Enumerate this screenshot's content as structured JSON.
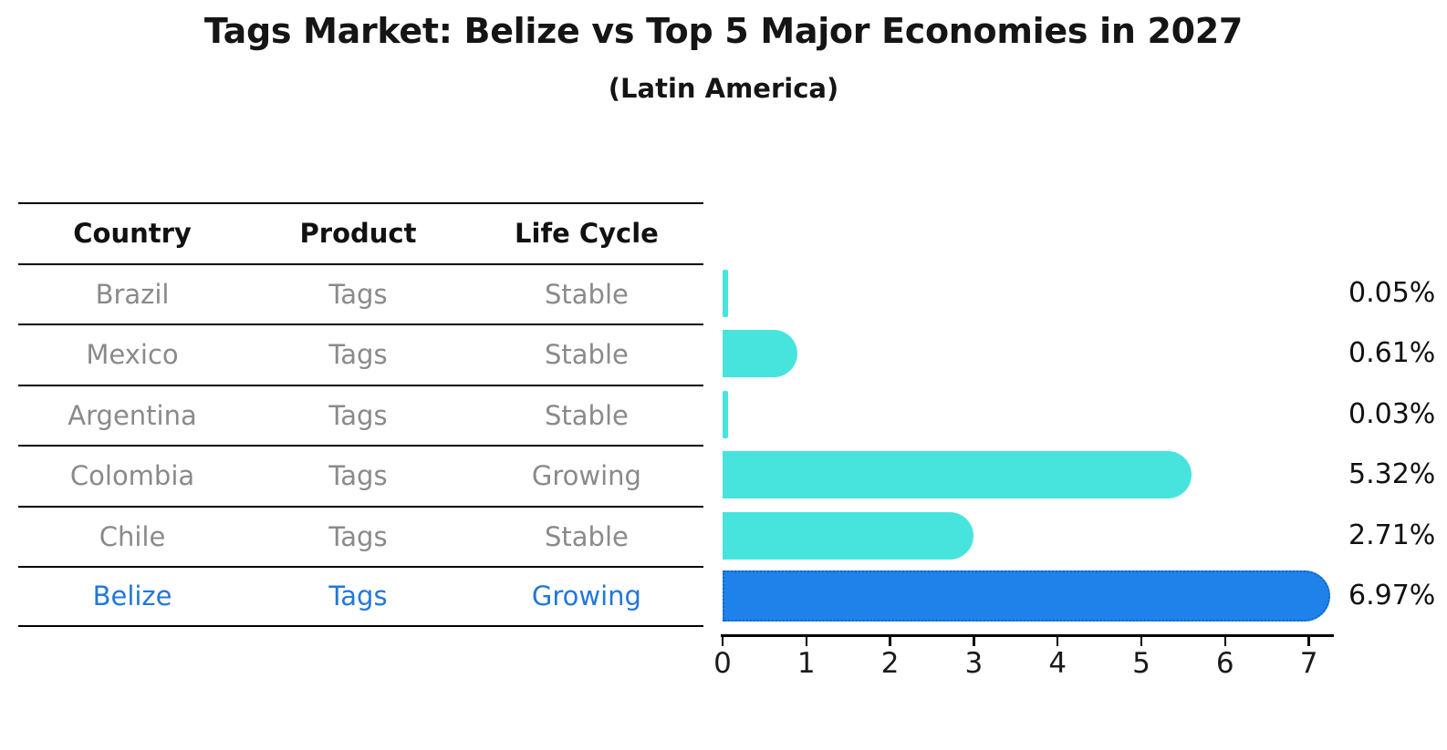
{
  "header": {
    "title": "Tags Market: Belize vs Top 5 Major Economies in 2027",
    "subtitle": "(Latin America)"
  },
  "table": {
    "columns": [
      "Country",
      "Product",
      "Life Cycle"
    ],
    "rows": [
      {
        "country": "Brazil",
        "product": "Tags",
        "life_cycle": "Stable",
        "highlighted": false
      },
      {
        "country": "Mexico",
        "product": "Tags",
        "life_cycle": "Stable",
        "highlighted": false
      },
      {
        "country": "Argentina",
        "product": "Tags",
        "life_cycle": "Stable",
        "highlighted": false
      },
      {
        "country": "Colombia",
        "product": "Tags",
        "life_cycle": "Growing",
        "highlighted": false
      },
      {
        "country": "Chile",
        "product": "Tags",
        "life_cycle": "Stable",
        "highlighted": false
      },
      {
        "country": "Belize",
        "product": "Tags",
        "life_cycle": "Growing",
        "highlighted": true
      }
    ]
  },
  "chart_data": {
    "type": "bar",
    "orientation": "horizontal",
    "title": "Tags Market: Belize vs Top 5 Major Economies in 2027",
    "subtitle": "(Latin America)",
    "categories": [
      "Brazil",
      "Mexico",
      "Argentina",
      "Colombia",
      "Chile",
      "Belize"
    ],
    "values": [
      0.05,
      0.61,
      0.03,
      5.32,
      2.71,
      6.97
    ],
    "value_labels": [
      "0.05%",
      "0.61%",
      "0.03%",
      "5.32%",
      "2.71%",
      "6.97%"
    ],
    "highlight_index": 5,
    "x_ticks": [
      0,
      1,
      2,
      3,
      4,
      5,
      6,
      7
    ],
    "xlim": [
      0,
      7.3
    ],
    "grid": false,
    "legend_position": "none",
    "colors": {
      "bar_default": "#47E4DE",
      "bar_highlight": "#1E82EA",
      "bar_highlight_border": "#1565C0",
      "highlight_text": "#2278d8",
      "table_text": "#8a8a8a",
      "axis_text": "#111111"
    }
  }
}
